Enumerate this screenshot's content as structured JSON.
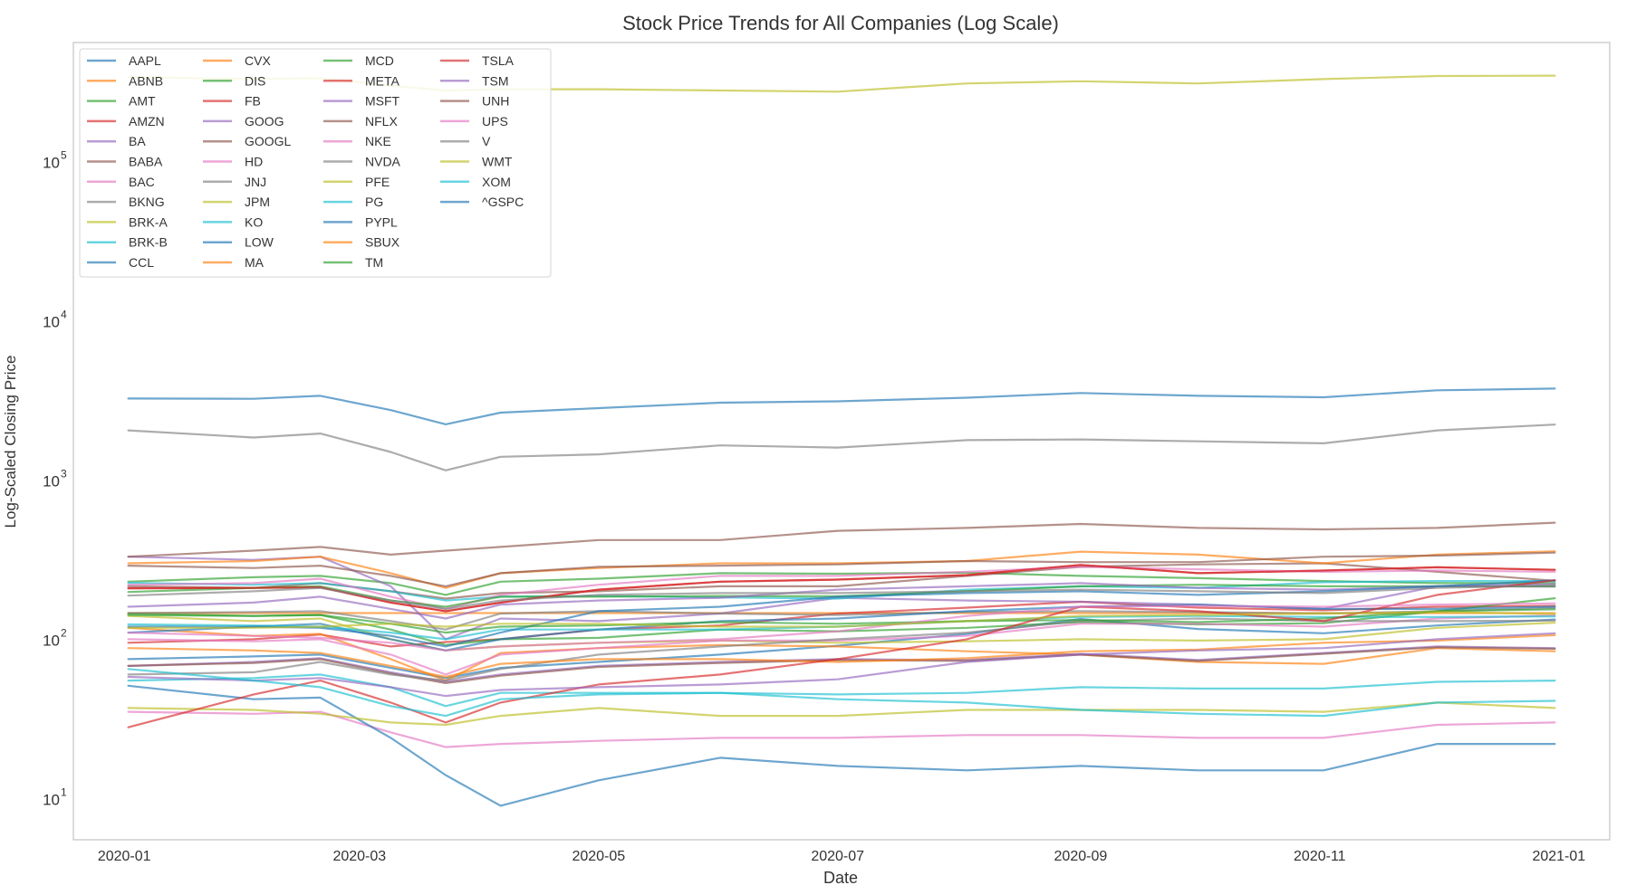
{
  "chart_data": {
    "type": "line",
    "title": "Stock Price Trends for All Companies (Log Scale)",
    "xlabel": "Date",
    "ylabel": "Log-Scaled Closing Price",
    "yscale": "log",
    "ylim": [
      5.5,
      560000
    ],
    "xlim": [
      "2019-12-19",
      "2021-01-14"
    ],
    "grid": false,
    "legend_position": "top-left",
    "legend_columns": 4,
    "x_ticks": [
      "2020-01",
      "2020-03",
      "2020-05",
      "2020-07",
      "2020-09",
      "2020-11",
      "2021-01"
    ],
    "y_ticks": [
      {
        "value": 10,
        "base": "10",
        "exp": "1"
      },
      {
        "value": 100,
        "base": "10",
        "exp": "2"
      },
      {
        "value": 1000,
        "base": "10",
        "exp": "3"
      },
      {
        "value": 10000,
        "base": "10",
        "exp": "4"
      },
      {
        "value": 100000,
        "base": "10",
        "exp": "5"
      }
    ],
    "x": [
      "2020-01-02",
      "2020-02-03",
      "2020-02-20",
      "2020-03-09",
      "2020-03-23",
      "2020-04-06",
      "2020-05-01",
      "2020-06-01",
      "2020-07-01",
      "2020-08-03",
      "2020-09-01",
      "2020-10-01",
      "2020-11-02",
      "2020-12-01",
      "2020-12-31"
    ],
    "series": [
      {
        "name": "AAPL",
        "color": "#1f77b4",
        "values": [
          75,
          78,
          80,
          66,
          57,
          66,
          72,
          80,
          91,
          108,
          134,
          116,
          109,
          122,
          133
        ]
      },
      {
        "name": "ABNB",
        "color": "#ff7f0e",
        "values": [
          146,
          146,
          146,
          146,
          146,
          146,
          146,
          146,
          146,
          146,
          146,
          146,
          146,
          146,
          146
        ]
      },
      {
        "name": "AMT",
        "color": "#2ca02c",
        "values": [
          230,
          245,
          250,
          225,
          190,
          230,
          240,
          260,
          258,
          262,
          250,
          242,
          232,
          225,
          225
        ]
      },
      {
        "name": "AMZN",
        "color": "#d62728",
        "values": [
          95,
          100,
          107,
          90,
          96,
          100,
          115,
          122,
          145,
          158,
          172,
          158,
          152,
          160,
          162
        ]
      },
      {
        "name": "BA",
        "color": "#9467bd",
        "values": [
          330,
          315,
          330,
          215,
          100,
          135,
          130,
          145,
          182,
          175,
          172,
          165,
          155,
          215,
          214
        ]
      },
      {
        "name": "BABA",
        "color": "#8c564b",
        "values": [
          215,
          210,
          225,
          200,
          180,
          195,
          200,
          215,
          215,
          250,
          285,
          295,
          300,
          265,
          233
        ]
      },
      {
        "name": "BAC",
        "color": "#e377c2",
        "values": [
          35,
          34,
          35,
          26,
          21,
          22,
          23,
          24,
          24,
          25,
          25,
          24,
          24,
          29,
          30
        ]
      },
      {
        "name": "BKNG",
        "color": "#7f7f7f",
        "values": [
          2050,
          1850,
          1960,
          1500,
          1150,
          1400,
          1450,
          1650,
          1600,
          1780,
          1800,
          1750,
          1700,
          2050,
          2230
        ]
      },
      {
        "name": "BRK-A",
        "color": "#bcbd22",
        "values": [
          340000,
          330000,
          335000,
          300000,
          280000,
          285000,
          285000,
          280000,
          275000,
          310000,
          320000,
          310000,
          330000,
          345000,
          347000
        ]
      },
      {
        "name": "BRK-B",
        "color": "#17becf",
        "values": [
          226,
          220,
          225,
          200,
          175,
          185,
          187,
          183,
          180,
          205,
          215,
          210,
          228,
          232,
          232
        ]
      },
      {
        "name": "CCL",
        "color": "#1f77b4",
        "values": [
          51,
          42,
          43,
          24,
          14,
          9,
          13,
          18,
          16,
          15,
          16,
          15,
          15,
          22,
          22
        ]
      },
      {
        "name": "CVX",
        "color": "#ff7f0e",
        "values": [
          118,
          105,
          108,
          75,
          55,
          82,
          88,
          92,
          90,
          84,
          80,
          72,
          70,
          88,
          84
        ]
      },
      {
        "name": "DIS",
        "color": "#2ca02c",
        "values": [
          145,
          140,
          142,
          115,
          92,
          100,
          102,
          115,
          112,
          118,
          128,
          124,
          126,
          150,
          181
        ]
      },
      {
        "name": "FB",
        "color": "#d62728",
        "values": [
          209,
          210,
          212,
          170,
          150,
          170,
          205,
          230,
          237,
          253,
          293,
          260,
          270,
          283,
          273
        ]
      },
      {
        "name": "GOOG",
        "color": "#9467bd",
        "values": [
          68,
          72,
          76,
          62,
          54,
          60,
          68,
          72,
          75,
          74,
          81,
          74,
          82,
          90,
          88
        ]
      },
      {
        "name": "GOOGL",
        "color": "#8c564b",
        "values": [
          68,
          71,
          75,
          61,
          53,
          59,
          67,
          71,
          74,
          73,
          80,
          73,
          81,
          89,
          87
        ]
      },
      {
        "name": "HD",
        "color": "#e377c2",
        "values": [
          220,
          225,
          240,
          185,
          155,
          190,
          220,
          250,
          250,
          265,
          285,
          275,
          265,
          270,
          265
        ]
      },
      {
        "name": "JNJ",
        "color": "#7f7f7f",
        "values": [
          146,
          148,
          150,
          130,
          115,
          145,
          150,
          145,
          142,
          148,
          150,
          148,
          145,
          150,
          157
        ]
      },
      {
        "name": "JPM",
        "color": "#bcbd22",
        "values": [
          140,
          130,
          135,
          100,
          85,
          90,
          95,
          98,
          95,
          97,
          100,
          98,
          100,
          118,
          127
        ]
      },
      {
        "name": "KO",
        "color": "#17becf",
        "values": [
          55,
          57,
          60,
          50,
          38,
          46,
          46,
          46,
          45,
          46,
          50,
          49,
          49,
          54,
          55
        ]
      },
      {
        "name": "LOW",
        "color": "#1f77b4",
        "values": [
          120,
          120,
          125,
          100,
          85,
          100,
          115,
          130,
          135,
          150,
          160,
          165,
          155,
          155,
          160
        ]
      },
      {
        "name": "MA",
        "color": "#ff7f0e",
        "values": [
          300,
          310,
          330,
          260,
          210,
          260,
          280,
          300,
          300,
          310,
          355,
          340,
          300,
          340,
          357
        ]
      },
      {
        "name": "MCD",
        "color": "#2ca02c",
        "values": [
          198,
          210,
          215,
          175,
          160,
          185,
          185,
          187,
          186,
          200,
          215,
          220,
          215,
          215,
          215
        ]
      },
      {
        "name": "META",
        "color": "#d62728",
        "values": [
          209,
          210,
          212,
          170,
          150,
          170,
          205,
          230,
          237,
          253,
          293,
          260,
          270,
          283,
          273
        ]
      },
      {
        "name": "MSFT",
        "color": "#9467bd",
        "values": [
          160,
          170,
          185,
          155,
          135,
          165,
          175,
          182,
          205,
          215,
          225,
          210,
          205,
          215,
          222
        ]
      },
      {
        "name": "NFLX",
        "color": "#8c564b",
        "values": [
          330,
          360,
          380,
          340,
          360,
          380,
          420,
          420,
          480,
          500,
          530,
          500,
          490,
          500,
          540
        ]
      },
      {
        "name": "NKE",
        "color": "#e377c2",
        "values": [
          100,
          97,
          100,
          80,
          60,
          80,
          88,
          98,
          98,
          105,
          125,
          125,
          120,
          135,
          141
        ]
      },
      {
        "name": "NVDA",
        "color": "#7f7f7f",
        "values": [
          60,
          62,
          72,
          60,
          55,
          65,
          80,
          90,
          100,
          110,
          130,
          135,
          130,
          130,
          131
        ]
      },
      {
        "name": "PFE",
        "color": "#bcbd22",
        "values": [
          37,
          36,
          34,
          30,
          29,
          33,
          37,
          33,
          33,
          36,
          36,
          36,
          35,
          40,
          37
        ]
      },
      {
        "name": "PG",
        "color": "#17becf",
        "values": [
          124,
          122,
          120,
          110,
          100,
          115,
          115,
          115,
          120,
          130,
          138,
          140,
          138,
          138,
          139
        ]
      },
      {
        "name": "PYPL",
        "color": "#1f77b4",
        "values": [
          110,
          120,
          118,
          105,
          90,
          110,
          150,
          160,
          185,
          195,
          200,
          190,
          200,
          215,
          234
        ]
      },
      {
        "name": "SBUX",
        "color": "#ff7f0e",
        "values": [
          88,
          85,
          82,
          68,
          58,
          70,
          75,
          75,
          72,
          76,
          84,
          86,
          95,
          98,
          106
        ]
      },
      {
        "name": "TM",
        "color": "#2ca02c",
        "values": [
          142,
          140,
          142,
          125,
          110,
          120,
          122,
          128,
          125,
          130,
          132,
          128,
          135,
          150,
          154
        ]
      },
      {
        "name": "TSLA",
        "color": "#d62728",
        "values": [
          28,
          45,
          55,
          40,
          30,
          40,
          52,
          60,
          75,
          100,
          160,
          150,
          130,
          190,
          235
        ]
      },
      {
        "name": "TSM",
        "color": "#9467bd",
        "values": [
          58,
          55,
          57,
          50,
          44,
          48,
          50,
          52,
          56,
          72,
          80,
          85,
          88,
          100,
          109
        ]
      },
      {
        "name": "UNH",
        "color": "#8c564b",
        "values": [
          290,
          280,
          290,
          250,
          215,
          260,
          285,
          290,
          295,
          310,
          305,
          305,
          330,
          335,
          350
        ]
      },
      {
        "name": "UPS",
        "color": "#e377c2",
        "values": [
          110,
          105,
          102,
          95,
          85,
          90,
          95,
          100,
          112,
          140,
          160,
          162,
          160,
          165,
          168
        ]
      },
      {
        "name": "V",
        "color": "#7f7f7f",
        "values": [
          188,
          200,
          210,
          175,
          155,
          175,
          190,
          195,
          195,
          200,
          205,
          200,
          195,
          210,
          218
        ]
      },
      {
        "name": "WMT",
        "color": "#bcbd22",
        "values": [
          118,
          118,
          120,
          125,
          120,
          125,
          125,
          120,
          120,
          130,
          140,
          142,
          145,
          148,
          144
        ]
      },
      {
        "name": "XOM",
        "color": "#17becf",
        "values": [
          65,
          55,
          50,
          38,
          33,
          42,
          45,
          46,
          42,
          40,
          36,
          34,
          33,
          40,
          41
        ]
      },
      {
        "name": "^GSPC",
        "color": "#1f77b4",
        "values": [
          3250,
          3240,
          3380,
          2750,
          2240,
          2650,
          2830,
          3060,
          3120,
          3290,
          3520,
          3380,
          3310,
          3660,
          3756
        ]
      }
    ]
  }
}
